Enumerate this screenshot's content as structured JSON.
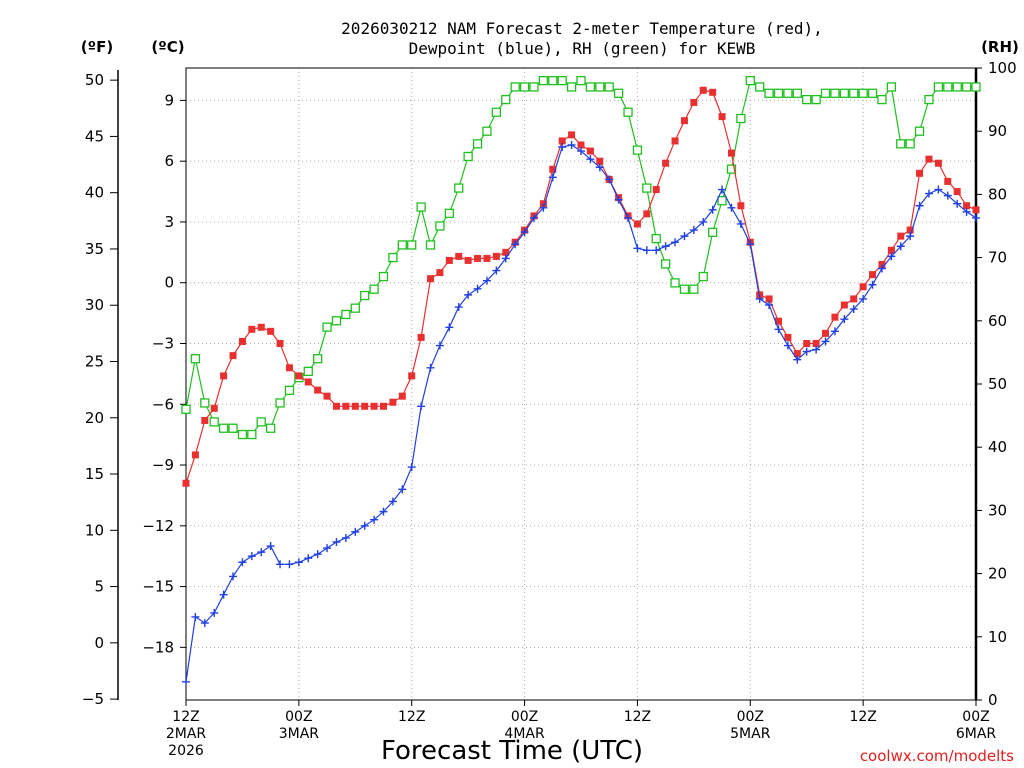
{
  "chart_data": {
    "type": "line",
    "title_line1": "2026030212 NAM Forecast 2-meter Temperature (red),",
    "title_line2": "Dewpoint (blue), RH (green) for KEWB",
    "xlabel": "Forecast Time (UTC)",
    "credit": "coolwx.com/modelts",
    "units": {
      "fahrenheit": "(ºF)",
      "celsius": "(ºC)",
      "rh": "(RH)"
    },
    "x_range_hours": [
      0,
      84
    ],
    "x_ticks": [
      {
        "hour": 0,
        "label1": "12Z",
        "label2": "2MAR",
        "label3": "2026"
      },
      {
        "hour": 12,
        "label1": "00Z",
        "label2": "3MAR",
        "label3": ""
      },
      {
        "hour": 24,
        "label1": "12Z",
        "label2": "",
        "label3": ""
      },
      {
        "hour": 36,
        "label1": "00Z",
        "label2": "4MAR",
        "label3": ""
      },
      {
        "hour": 48,
        "label1": "12Z",
        "label2": "",
        "label3": ""
      },
      {
        "hour": 60,
        "label1": "00Z",
        "label2": "5MAR",
        "label3": ""
      },
      {
        "hour": 72,
        "label1": "12Z",
        "label2": "",
        "label3": ""
      },
      {
        "hour": 84,
        "label1": "00Z",
        "label2": "6MAR",
        "label3": ""
      }
    ],
    "y_celsius": {
      "range": [
        -20.6,
        10.6
      ],
      "ticks": [
        9,
        6,
        3,
        0,
        -3,
        -6,
        -9,
        -12,
        -15,
        -18
      ],
      "tick_labels": [
        "9",
        "6",
        "3",
        "0",
        "−3",
        "−6",
        "−9",
        "−12",
        "−15",
        "−18"
      ]
    },
    "y_fahrenheit": {
      "ticks": [
        50,
        45,
        40,
        35,
        30,
        25,
        20,
        15,
        10,
        5,
        0,
        -5
      ],
      "tick_labels": [
        "50",
        "45",
        "40",
        "35",
        "30",
        "25",
        "20",
        "15",
        "10",
        "5",
        "0",
        "−5"
      ]
    },
    "y_rh": {
      "range": [
        0,
        100
      ],
      "ticks": [
        100,
        90,
        80,
        70,
        60,
        50,
        40,
        30,
        20,
        10,
        0
      ],
      "tick_labels": [
        "100",
        "90",
        "80",
        "70",
        "60",
        "50",
        "40",
        "30",
        "20",
        "10",
        "0"
      ]
    },
    "grid": true,
    "series": [
      {
        "name": "Temperature",
        "unit": "C",
        "color": "#e83030",
        "marker": "filled-square",
        "hours": [
          0,
          1,
          2,
          3,
          4,
          5,
          6,
          7,
          8,
          9,
          10,
          11,
          12,
          13,
          14,
          15,
          16,
          17,
          18,
          19,
          20,
          21,
          22,
          23,
          24,
          25,
          26,
          27,
          28,
          29,
          30,
          31,
          32,
          33,
          34,
          35,
          36,
          37,
          38,
          39,
          40,
          41,
          42,
          43,
          44,
          45,
          46,
          47,
          48,
          49,
          50,
          51,
          52,
          53,
          54,
          55,
          56,
          57,
          58,
          59,
          60,
          61,
          62,
          63,
          64,
          65,
          66,
          67,
          68,
          69,
          70,
          71,
          72,
          73,
          74,
          75,
          76,
          77,
          78,
          79,
          80,
          81,
          82,
          83,
          84
        ],
        "values": [
          -9.9,
          -8.5,
          -6.8,
          -6.2,
          -4.6,
          -3.6,
          -2.9,
          -2.3,
          -2.2,
          -2.4,
          -3.0,
          -4.2,
          -4.6,
          -4.9,
          -5.3,
          -5.6,
          -6.1,
          -6.1,
          -6.1,
          -6.1,
          -6.1,
          -6.1,
          -5.9,
          -5.6,
          -4.6,
          -2.7,
          0.2,
          0.5,
          1.1,
          1.3,
          1.1,
          1.2,
          1.2,
          1.3,
          1.5,
          2.0,
          2.6,
          3.3,
          3.9,
          5.6,
          7.0,
          7.3,
          6.8,
          6.5,
          6.0,
          5.1,
          4.2,
          3.3,
          2.9,
          3.4,
          4.6,
          5.9,
          7.0,
          8.0,
          8.9,
          9.5,
          9.4,
          8.2,
          6.4,
          3.8,
          2.0,
          -0.6,
          -0.8,
          -1.9,
          -2.7,
          -3.5,
          -3.0,
          -3.0,
          -2.5,
          -1.7,
          -1.1,
          -0.8,
          -0.2,
          0.4,
          0.9,
          1.6,
          2.3,
          2.6,
          5.4,
          6.1,
          5.9,
          5.0,
          4.5,
          3.8,
          3.6
        ]
      },
      {
        "name": "Dewpoint",
        "unit": "C",
        "color": "#2040e0",
        "marker": "plus",
        "hours": [
          0,
          1,
          2,
          3,
          4,
          5,
          6,
          7,
          8,
          9,
          10,
          11,
          12,
          13,
          14,
          15,
          16,
          17,
          18,
          19,
          20,
          21,
          22,
          23,
          24,
          25,
          26,
          27,
          28,
          29,
          30,
          31,
          32,
          33,
          34,
          35,
          36,
          37,
          38,
          39,
          40,
          41,
          42,
          43,
          44,
          45,
          46,
          47,
          48,
          49,
          50,
          51,
          52,
          53,
          54,
          55,
          56,
          57,
          58,
          59,
          60,
          61,
          62,
          63,
          64,
          65,
          66,
          67,
          68,
          69,
          70,
          71,
          72,
          73,
          74,
          75,
          76,
          77,
          78,
          79,
          80,
          81,
          82,
          83,
          84
        ],
        "values": [
          -19.7,
          -16.5,
          -16.8,
          -16.3,
          -15.4,
          -14.5,
          -13.8,
          -13.5,
          -13.3,
          -13.0,
          -13.9,
          -13.9,
          -13.8,
          -13.6,
          -13.4,
          -13.1,
          -12.8,
          -12.6,
          -12.3,
          -12.0,
          -11.7,
          -11.3,
          -10.8,
          -10.2,
          -9.1,
          -6.1,
          -4.2,
          -3.1,
          -2.2,
          -1.2,
          -0.6,
          -0.3,
          0.1,
          0.6,
          1.2,
          1.9,
          2.5,
          3.2,
          3.7,
          5.2,
          6.7,
          6.8,
          6.5,
          6.1,
          5.7,
          5.1,
          4.1,
          3.2,
          1.7,
          1.6,
          1.6,
          1.8,
          2.0,
          2.3,
          2.6,
          3.0,
          3.6,
          4.6,
          3.7,
          2.9,
          1.9,
          -0.8,
          -1.1,
          -2.3,
          -3.1,
          -3.8,
          -3.4,
          -3.3,
          -2.9,
          -2.4,
          -1.8,
          -1.3,
          -0.8,
          -0.1,
          0.7,
          1.3,
          1.8,
          2.3,
          3.8,
          4.4,
          4.6,
          4.3,
          3.9,
          3.5,
          3.2
        ]
      },
      {
        "name": "RH",
        "unit": "%",
        "color": "#20c020",
        "marker": "open-square",
        "hours": [
          0,
          1,
          2,
          3,
          4,
          5,
          6,
          7,
          8,
          9,
          10,
          11,
          12,
          13,
          14,
          15,
          16,
          17,
          18,
          19,
          20,
          21,
          22,
          23,
          24,
          25,
          26,
          27,
          28,
          29,
          30,
          31,
          32,
          33,
          34,
          35,
          36,
          37,
          38,
          39,
          40,
          41,
          42,
          43,
          44,
          45,
          46,
          47,
          48,
          49,
          50,
          51,
          52,
          53,
          54,
          55,
          56,
          57,
          58,
          59,
          60,
          61,
          62,
          63,
          64,
          65,
          66,
          67,
          68,
          69,
          70,
          71,
          72,
          73,
          74,
          75,
          76,
          77,
          78,
          79,
          80,
          81,
          82,
          83,
          84
        ],
        "values": [
          46,
          54,
          47,
          44,
          43,
          43,
          42,
          42,
          44,
          43,
          47,
          49,
          51,
          52,
          54,
          59,
          60,
          61,
          62,
          64,
          65,
          67,
          70,
          72,
          72,
          78,
          72,
          75,
          77,
          81,
          86,
          88,
          90,
          93,
          95,
          97,
          97,
          97,
          98,
          98,
          98,
          97,
          98,
          97,
          97,
          97,
          96,
          93,
          87,
          81,
          73,
          69,
          66,
          65,
          65,
          67,
          74,
          79,
          84,
          92,
          98,
          97,
          96,
          96,
          96,
          96,
          95,
          95,
          96,
          96,
          96,
          96,
          96,
          96,
          95,
          97,
          88,
          88,
          90,
          95,
          97,
          97,
          97,
          97,
          97
        ]
      }
    ]
  }
}
